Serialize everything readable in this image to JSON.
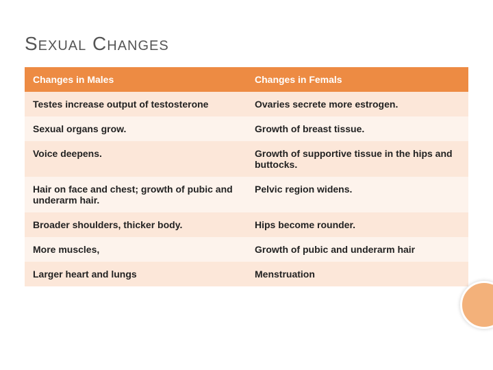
{
  "title": "Sexual Changes",
  "table": {
    "columns": [
      "Changes in Males",
      "Changes in Femals"
    ],
    "rows": [
      [
        "Testes increase output of testosterone",
        "Ovaries secrete more estrogen."
      ],
      [
        "Sexual organs grow.",
        "Growth of breast tissue."
      ],
      [
        "Voice deepens.",
        "Growth of supportive tissue in the hips and buttocks."
      ],
      [
        "Hair on face and chest; growth of pubic and underarm hair.",
        "Pelvic region widens."
      ],
      [
        "Broader shoulders, thicker body.",
        "Hips become rounder."
      ],
      [
        "More muscles,",
        "Growth of pubic and underarm hair"
      ],
      [
        "Larger heart and lungs",
        "Menstruation"
      ]
    ],
    "header_bg": "#ed8b43",
    "header_fg": "#ffffff",
    "row_odd_bg": "#fce7d9",
    "row_even_bg": "#fdf3ec",
    "font_size": 14
  },
  "accent_circle_color": "#f3b17a"
}
